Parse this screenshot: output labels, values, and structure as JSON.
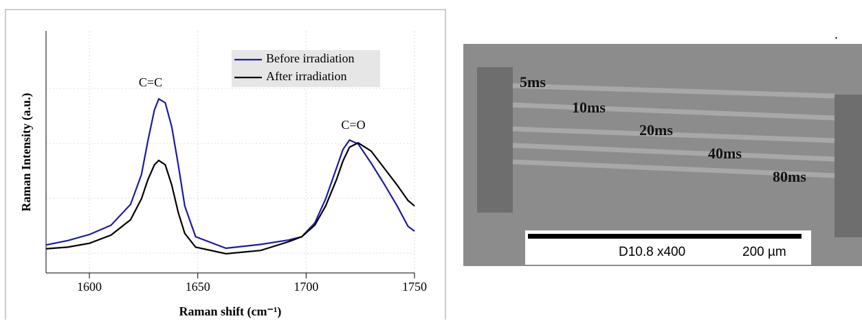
{
  "chart_data": {
    "type": "line",
    "x_label": "Raman shift (cm⁻¹)",
    "y_label": "Raman Intensity (a.u.)",
    "annotations": [
      "C=C",
      "C=O"
    ],
    "x": [
      1580,
      1590,
      1600,
      1610,
      1619,
      1624,
      1627,
      1630,
      1632,
      1635,
      1638,
      1641,
      1644,
      1649,
      1663,
      1679,
      1692,
      1698,
      1704,
      1709,
      1714,
      1717,
      1720,
      1724,
      1730,
      1736,
      1742,
      1747,
      1750
    ],
    "series": [
      {
        "name": "Before irradiation",
        "color": "#1a1aa6",
        "values": [
          1.15,
          1.23,
          1.34,
          1.51,
          1.89,
          2.43,
          3.05,
          3.61,
          3.81,
          3.74,
          3.3,
          2.61,
          1.86,
          1.3,
          1.09,
          1.16,
          1.24,
          1.3,
          1.55,
          1.99,
          2.55,
          2.89,
          3.06,
          2.99,
          2.64,
          2.26,
          1.86,
          1.49,
          1.4
        ]
      },
      {
        "name": "After irradiation",
        "color": "#000000",
        "values": [
          1.08,
          1.11,
          1.18,
          1.33,
          1.61,
          1.99,
          2.34,
          2.61,
          2.69,
          2.61,
          2.24,
          1.74,
          1.36,
          1.11,
          0.99,
          1.05,
          1.21,
          1.3,
          1.51,
          1.86,
          2.34,
          2.68,
          2.93,
          3.01,
          2.86,
          2.55,
          2.24,
          1.96,
          1.86
        ]
      }
    ],
    "xlim": [
      1580,
      1750
    ],
    "xticks": [
      1600,
      1650,
      1700,
      1750
    ],
    "ylim": [
      0.64,
      5.05
    ],
    "yticks": [
      1,
      2,
      3,
      4
    ],
    "grid": true,
    "legend": "top-right"
  },
  "image": {
    "labels": [
      "5ms",
      "10ms",
      "20ms",
      "40ms",
      "80ms"
    ],
    "scale_info": "D10.8 x400",
    "scale_length": "200 µm",
    "mark": "."
  }
}
